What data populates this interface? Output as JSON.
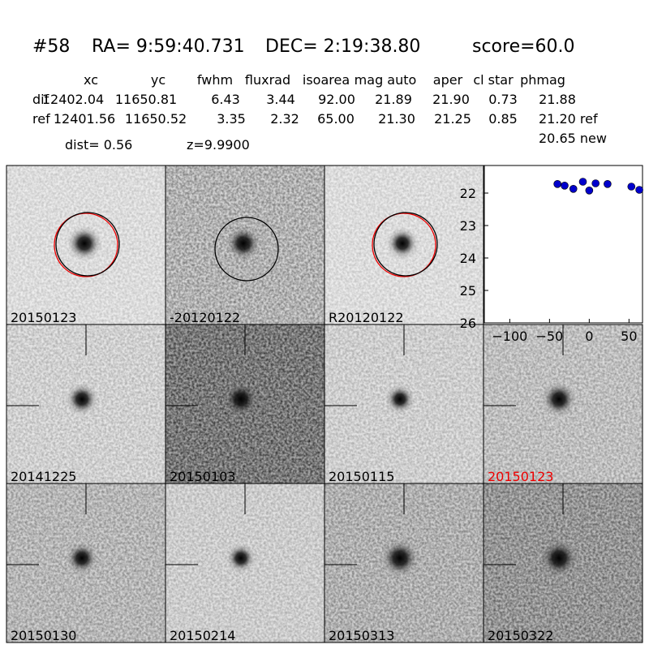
{
  "header": {
    "id": "#58",
    "ra": "RA= 9:59:40.731",
    "dec": "DEC= 2:19:38.80",
    "score": "score=60.0"
  },
  "table": {
    "columns": [
      "xc",
      "yc",
      "fwhm",
      "fluxrad",
      "isoarea",
      "mag auto",
      "aper",
      "cl star",
      "phmag"
    ],
    "rows": [
      [
        "dif",
        "12402.04",
        "11650.81",
        "6.43",
        "3.44",
        "92.00",
        "21.89",
        "21.90",
        "0.73",
        "21.88"
      ],
      [
        "ref",
        "12401.56",
        "11650.52",
        "3.35",
        "2.32",
        "65.00",
        "21.30",
        "21.25",
        "0.85",
        "21.20 ref"
      ]
    ],
    "extra": "20.65 new"
  },
  "dist": "dist=  0.56",
  "z": "z=9.9900",
  "panels": [
    "20150123",
    "-20120122",
    "R20120122",
    "20141225",
    "20150103",
    "20150115",
    "20150123",
    "20150130",
    "20150214",
    "20150313",
    "20150322"
  ],
  "light_curve": {
    "type": "scatter",
    "x": [
      -40,
      -31,
      -20,
      -8,
      0,
      8,
      23,
      53,
      63
    ],
    "y": [
      21.72,
      21.77,
      21.87,
      21.65,
      21.92,
      21.7,
      21.72,
      21.8,
      21.9
    ],
    "errors": [
      0.05,
      0.05,
      0.08,
      0.05,
      0.06,
      0.05,
      0.05,
      0.05,
      0.08
    ],
    "color": "#0000cc",
    "xlim": [
      -132,
      67
    ],
    "ylim": [
      21.15,
      26
    ],
    "y_inverted": true,
    "xticks": [
      {
        "value": -100,
        "label": "−100"
      },
      {
        "value": -50,
        "label": "−50"
      },
      0,
      50
    ],
    "yticks": [
      22,
      23,
      24,
      25,
      26
    ]
  }
}
